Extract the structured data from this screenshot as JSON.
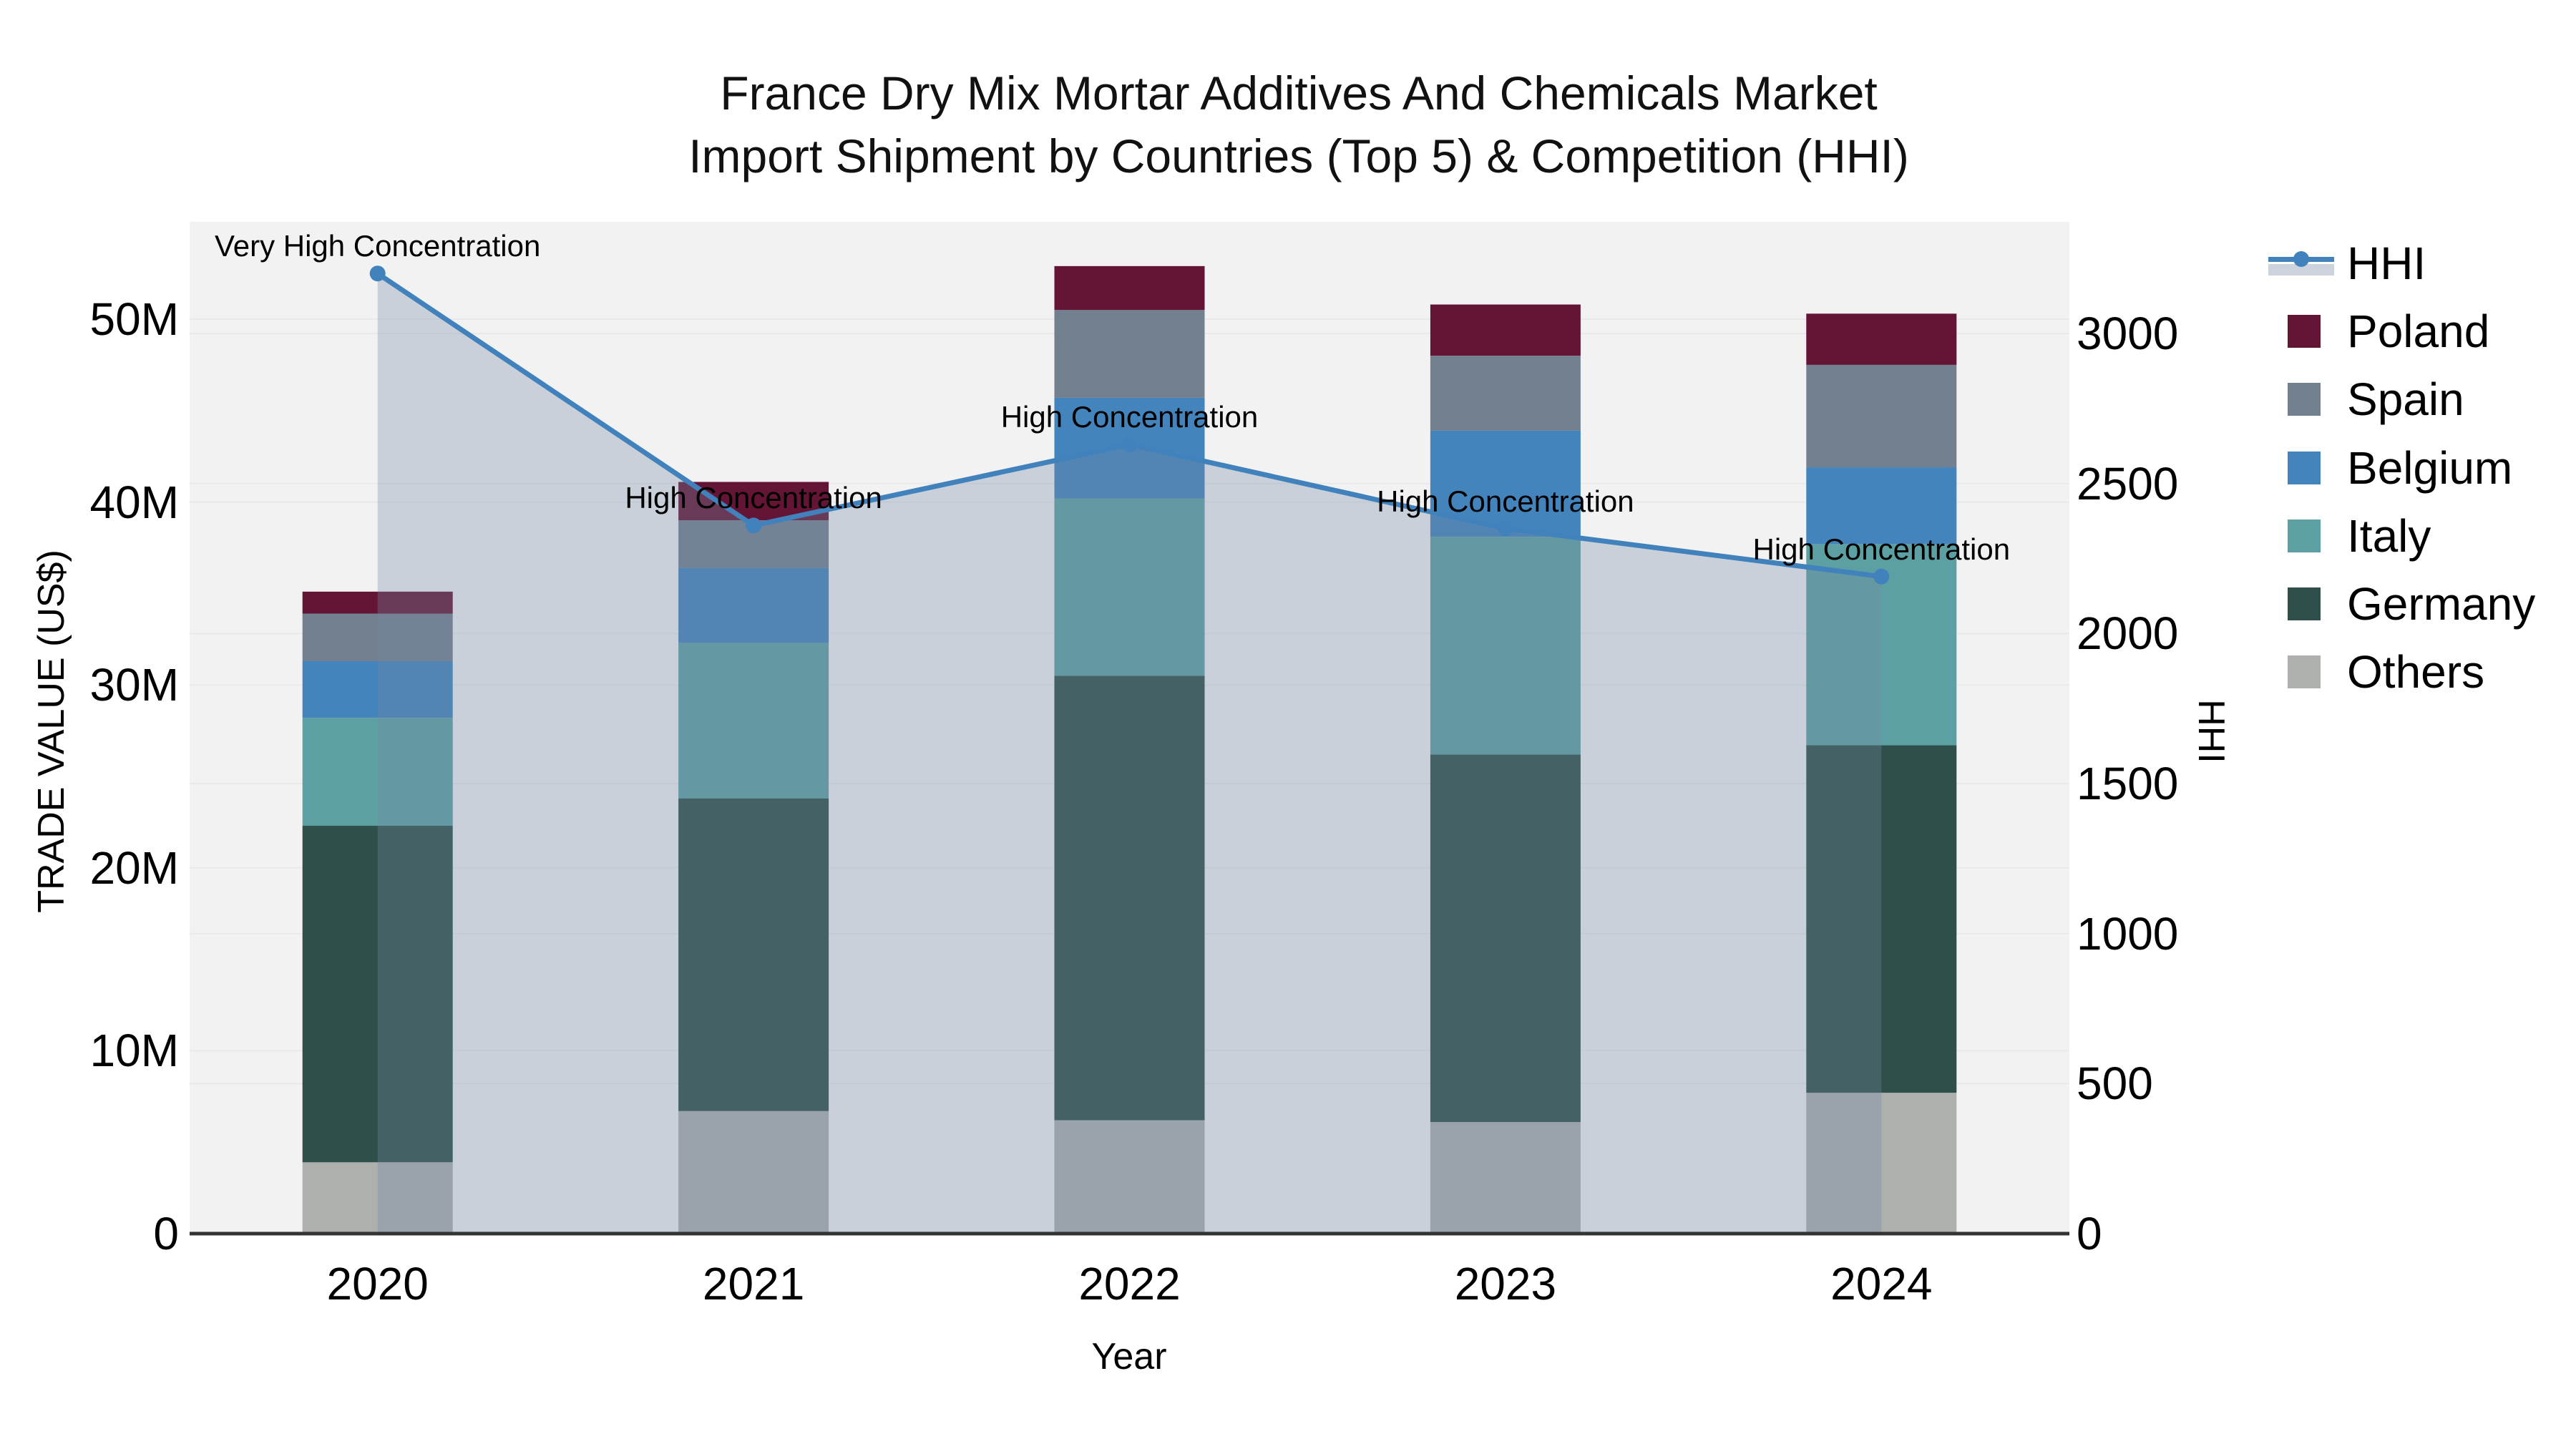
{
  "chart_data": {
    "type": "combo-stacked-bar-line-dual-axis",
    "title_line1": "France Dry Mix Mortar Additives And Chemicals Market",
    "title_line2": "Import Shipment by Countries (Top 5) & Competition (HHI)",
    "xlabel": "Year",
    "ylabel_left": "TRADE VALUE (US$)",
    "ylabel_right": "HHI",
    "categories": [
      "2020",
      "2021",
      "2022",
      "2023",
      "2024"
    ],
    "bar_series_bottom_to_top": [
      {
        "name": "Others",
        "color": "#adb0ad",
        "values_m_usd": [
          3.9,
          6.7,
          6.2,
          6.1,
          7.7
        ]
      },
      {
        "name": "Germany",
        "color": "#2e4f4a",
        "values_m_usd": [
          18.4,
          17.1,
          24.3,
          20.1,
          19.0
        ]
      },
      {
        "name": "Italy",
        "color": "#5da0a3",
        "values_m_usd": [
          5.9,
          8.5,
          9.7,
          11.9,
          11.0
        ]
      },
      {
        "name": "Belgium",
        "color": "#4384bd",
        "values_m_usd": [
          3.1,
          4.1,
          5.5,
          5.8,
          4.2
        ]
      },
      {
        "name": "Spain",
        "color": "#73808f",
        "values_m_usd": [
          2.6,
          2.6,
          4.8,
          4.1,
          5.6
        ]
      },
      {
        "name": "Poland",
        "color": "#641536",
        "values_m_usd": [
          1.2,
          2.1,
          2.4,
          2.8,
          2.8
        ]
      }
    ],
    "bar_totals_m_usd": [
      35.1,
      41.1,
      52.9,
      50.8,
      50.3
    ],
    "hhi": {
      "name": "HHI",
      "line_color": "#4182bd",
      "area_fill": "rgba(116,137,163,0.32)",
      "values": [
        3200,
        2360,
        2630,
        2350,
        2190
      ]
    },
    "annotations": [
      {
        "category": "2020",
        "text": "Very High Concentration"
      },
      {
        "category": "2021",
        "text": "High Concentration"
      },
      {
        "category": "2022",
        "text": "High Concentration"
      },
      {
        "category": "2023",
        "text": "High Concentration"
      },
      {
        "category": "2024",
        "text": "High Concentration"
      }
    ],
    "y_left": {
      "tick_labels": [
        "0",
        "10M",
        "20M",
        "30M",
        "40M",
        "50M"
      ],
      "tick_values_m": [
        0,
        10,
        20,
        30,
        40,
        50
      ],
      "range_m": [
        0,
        55.3
      ]
    },
    "y_right": {
      "tick_labels": [
        "0",
        "500",
        "1000",
        "1500",
        "2000",
        "2500",
        "3000"
      ],
      "tick_values": [
        0,
        500,
        1000,
        1500,
        2000,
        2500,
        3000
      ],
      "range": [
        0,
        3373
      ]
    },
    "legend": [
      {
        "label": "HHI",
        "swatch": "line-marker-area"
      },
      {
        "label": "Poland",
        "swatch": "#641536"
      },
      {
        "label": "Spain",
        "swatch": "#73808f"
      },
      {
        "label": "Belgium",
        "swatch": "#4384bd"
      },
      {
        "label": "Italy",
        "swatch": "#5da0a3"
      },
      {
        "label": "Germany",
        "swatch": "#2e4f4a"
      },
      {
        "label": "Others",
        "swatch": "#adb0ad"
      }
    ],
    "colors": {
      "plot_bg": "#f2f2f3",
      "gridline": "#e9e9eb",
      "axis_line": "#333333"
    }
  }
}
